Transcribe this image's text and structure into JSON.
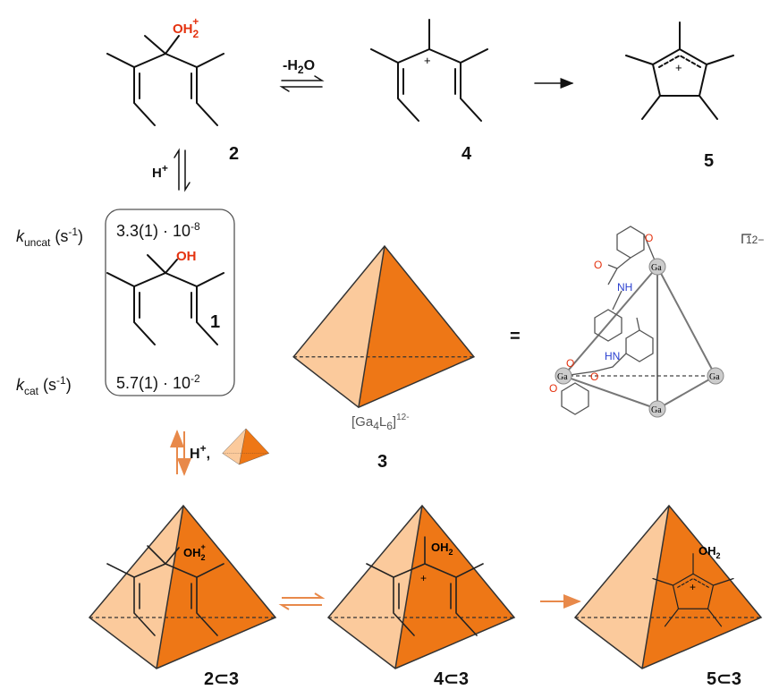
{
  "scheme": {
    "compound_2": {
      "label": "2",
      "group": "OH",
      "group_sub": "2",
      "group_sup": "+"
    },
    "dehydration": {
      "prefix": "-H",
      "sub": "2",
      "suffix": "O"
    },
    "compound_4": {
      "label": "4",
      "charge": "+"
    },
    "compound_5": {
      "label": "5",
      "charge": "+"
    },
    "protonation": {
      "text": "H",
      "sup": "+"
    },
    "compound_1": {
      "label": "1",
      "group": "OH"
    },
    "rates": [
      {
        "symbol": "k",
        "sub": "uncat",
        "unit": "(s",
        "unit_sup": "-1",
        "close": ")",
        "value": "3.3(1) · 10",
        "value_sup": "-8"
      },
      {
        "symbol": "k",
        "sub": "cat",
        "unit": "(s",
        "unit_sup": "-1",
        "close": ")",
        "value": "5.7(1) · 10",
        "value_sup": "-2"
      }
    ],
    "host": {
      "formula": "[Ga",
      "sub1": "4",
      "mid": "L",
      "sub2": "6",
      "close": "]",
      "sup": "12-",
      "label": "3",
      "equals": "=",
      "charge": "12−",
      "metals": [
        "Ga",
        "Ga",
        "Ga",
        "Ga"
      ],
      "atoms": [
        "O",
        "O",
        "NH",
        "O",
        "HN",
        "O",
        "O"
      ]
    },
    "encapsulation": {
      "text": "H",
      "sup": "+",
      "comma": ","
    },
    "complexes": [
      {
        "label": "2⊂3",
        "group": "OH",
        "group_sub": "2",
        "group_sup": "+"
      },
      {
        "label": "4⊂3",
        "group": "OH",
        "group_sub": "2",
        "charge": "+"
      },
      {
        "label": "5⊂3",
        "group": "OH",
        "group_sub": "2",
        "charge": "+"
      }
    ]
  }
}
